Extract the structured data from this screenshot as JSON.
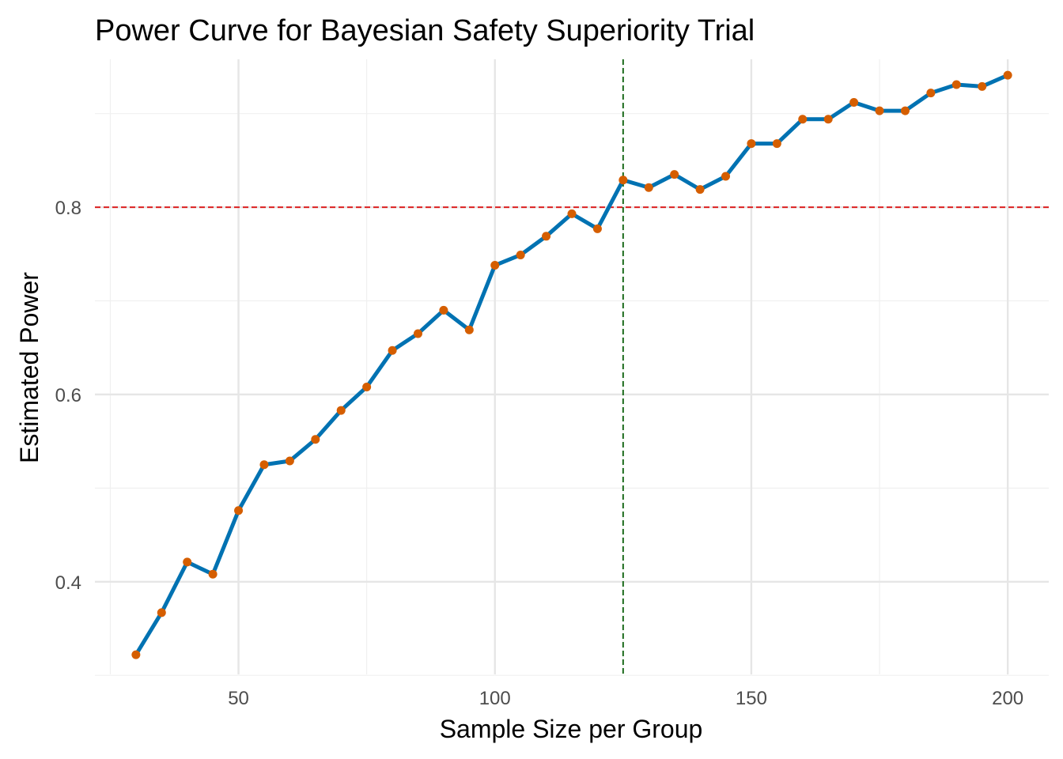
{
  "chart_data": {
    "type": "line",
    "title": "Power Curve for Bayesian Safety Superiority Trial",
    "xlabel": "Sample Size per Group",
    "ylabel": "Estimated Power",
    "xlim": [
      22,
      208
    ],
    "ylim": [
      0.301,
      0.958
    ],
    "x_ticks": [
      50,
      100,
      150,
      200
    ],
    "x_tick_labels": [
      "50",
      "100",
      "150",
      "200"
    ],
    "y_ticks": [
      0.4,
      0.6,
      0.8
    ],
    "y_tick_labels": [
      "0.4",
      "0.6",
      "0.8"
    ],
    "x_minor_ticks": [
      25,
      75,
      125,
      175
    ],
    "y_minor_ticks": [
      0.3,
      0.5,
      0.7,
      0.9
    ],
    "grid": true,
    "reference_lines": [
      {
        "orientation": "horizontal",
        "value": 0.8,
        "color": "#dd2222",
        "style": "dashed"
      },
      {
        "orientation": "vertical",
        "value": 125,
        "color": "#1b6b1b",
        "style": "dashed"
      }
    ],
    "series": [
      {
        "line_color": "#0072b2",
        "marker_color": "#d55e00",
        "x": [
          30,
          35,
          40,
          45,
          50,
          55,
          60,
          65,
          70,
          75,
          80,
          85,
          90,
          95,
          100,
          105,
          110,
          115,
          120,
          125,
          130,
          135,
          140,
          145,
          150,
          155,
          160,
          165,
          170,
          175,
          180,
          185,
          190,
          195,
          200
        ],
        "y": [
          0.322,
          0.367,
          0.421,
          0.408,
          0.476,
          0.525,
          0.529,
          0.552,
          0.583,
          0.608,
          0.647,
          0.665,
          0.69,
          0.669,
          0.738,
          0.749,
          0.769,
          0.793,
          0.777,
          0.829,
          0.821,
          0.835,
          0.819,
          0.833,
          0.868,
          0.868,
          0.894,
          0.894,
          0.912,
          0.903,
          0.903,
          0.922,
          0.931,
          0.929,
          0.941
        ]
      }
    ]
  }
}
